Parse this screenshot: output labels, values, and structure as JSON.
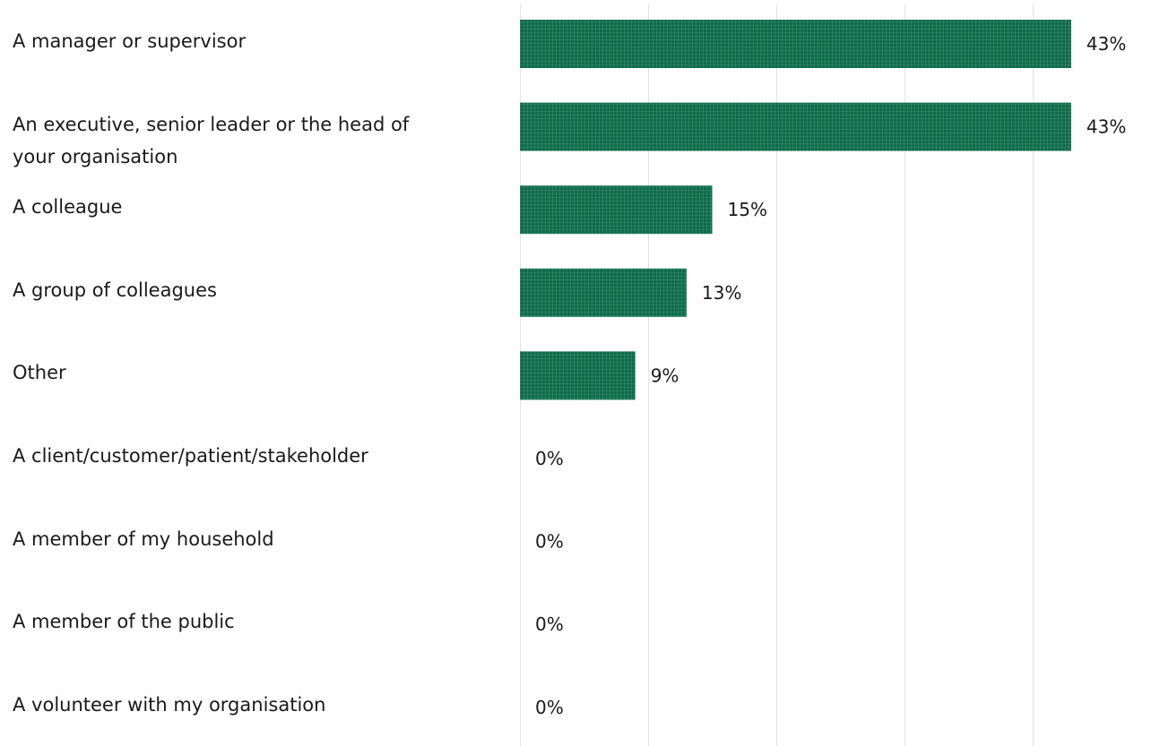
{
  "chart_data": {
    "type": "bar",
    "orientation": "horizontal",
    "categories": [
      "A manager or supervisor",
      "An executive, senior leader or the head of your organisation",
      "A colleague",
      "A group of colleagues",
      "Other",
      "A client/customer/patient/stakeholder",
      "A member of my household",
      "A member of the public",
      "A volunteer with my organisation"
    ],
    "category_lines": [
      [
        "A manager or supervisor"
      ],
      [
        "An executive, senior leader or the head of",
        "your organisation"
      ],
      [
        "A colleague"
      ],
      [
        "A group of colleagues"
      ],
      [
        "Other"
      ],
      [
        "A client/customer/patient/stakeholder"
      ],
      [
        "A member of my household"
      ],
      [
        "A member of the public"
      ],
      [
        "A volunteer with my organisation"
      ]
    ],
    "values": [
      43,
      43,
      15,
      13,
      9,
      0,
      0,
      0,
      0
    ],
    "value_labels": [
      "43%",
      "43%",
      "15%",
      "13%",
      "9%",
      "0%",
      "0%",
      "0%",
      "0%"
    ],
    "xlim": [
      0,
      50
    ],
    "grid": true,
    "bar_color": "#0f6b4c",
    "title": "",
    "xlabel": "",
    "ylabel": ""
  }
}
